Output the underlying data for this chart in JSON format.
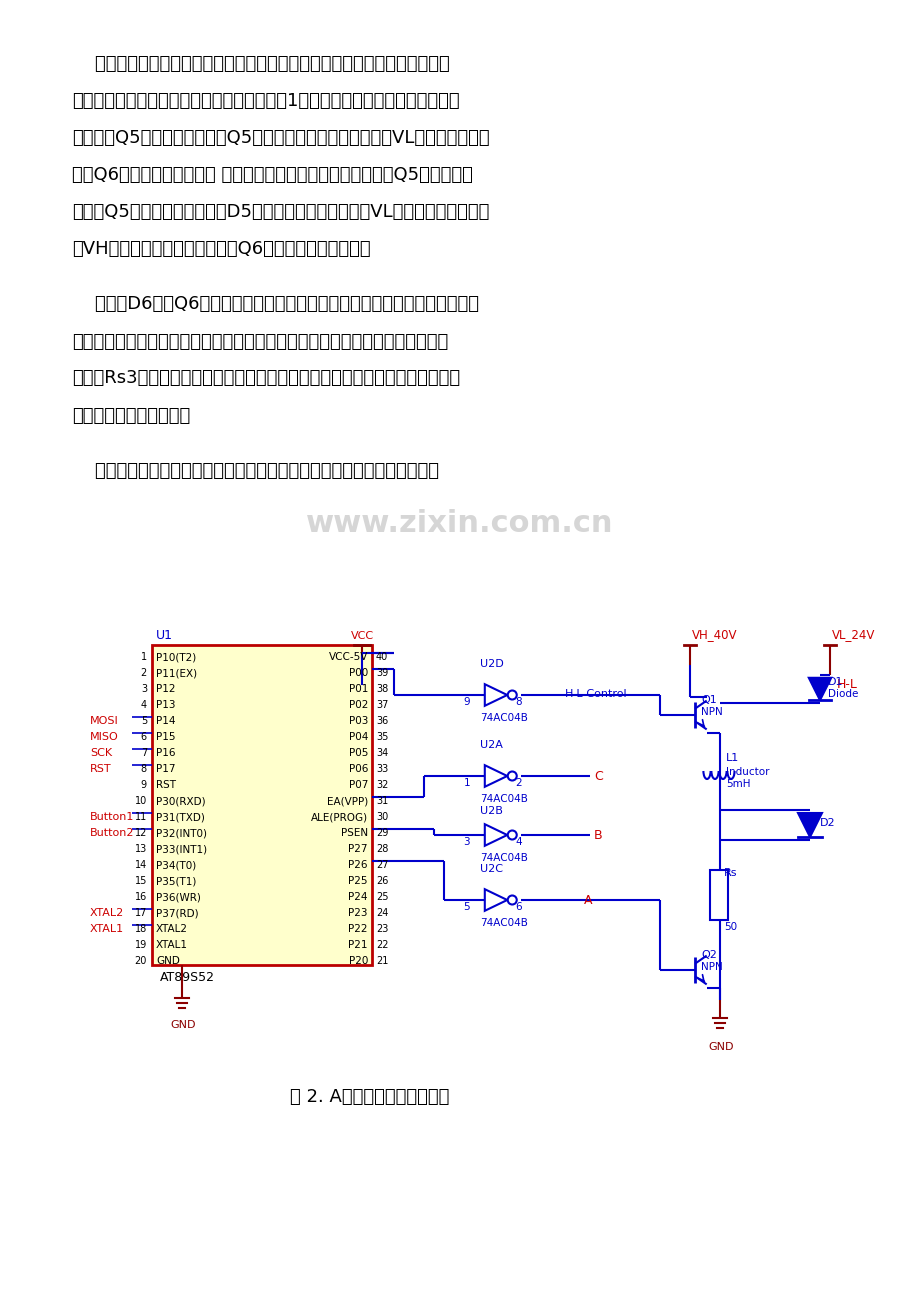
{
  "page_bg": "#ffffff",
  "text_color": "#000000",
  "blue": "#0000CC",
  "red": "#CC0000",
  "darkred": "#8B0000",
  "yellow_bg": "#FFFFCC",
  "watermark": "www.zixin.com.cn",
  "para1": [
    "双电压法。双电压法的基本思绪是在低频段使用较低的直流电压，而在高频",
    "段使用较高的直流电压，其驱动电路的原理图1所示。当电动机工作在低频段时，",
    "给开关管Q5基极加低电平，使Q5关断。这时相绕组由低压电源VL供电。控制脉冲",
    "通过Q6使绕组得到低压脉冲 当电动机工作在高频段时，给开关管Q5基极加高电",
    "平，使Q5导通。这时，二极管D5反向截止，切断低压电源VL，而相绕组由高压电",
    "源VH供电，控制脉冲通过开关管Q6使绕组得到高压脉冲。"
  ],
  "para2": [
    "二极管D6则在Q6关断期间起续流作用。这种驱动电路在低频段与单电压驱动",
    "相似。在高频段通过转换电源电压提高电流响应速度，但仍需要在绕组回路中串",
    "联电阵Rs3。并没有折脱单电压驱动的弱点。此外，将频率划分为高、低两段，",
    "使特性不持续，有突变。"
  ],
  "para3": "双电压驱动的三相双拍步进电机驱动控制系统设计的重要电路构造如下：",
  "caption": "图 2. A相与单片机的连接图。",
  "ic_left_pins": [
    "P10(T2)",
    "P11(EX)",
    "P12",
    "P13",
    "P14",
    "P15",
    "P16",
    "P17",
    "RST",
    "P30(RXD)",
    "P31(TXD)",
    "P32(INT0)",
    "P33(INT1)",
    "P34(T0)",
    "P35(T1)",
    "P36(WR)",
    "P37(RD)",
    "XTAL2",
    "XTAL1",
    "GND"
  ],
  "ic_right_pins": [
    "VCC-5V",
    "P00",
    "P01",
    "P02",
    "P03",
    "P04",
    "P05",
    "P06",
    "P07",
    "EA(VPP)",
    "ALE(PROG)",
    "PSEN",
    "P27",
    "P26",
    "P25",
    "P24",
    "P23",
    "P22",
    "P21",
    "P20"
  ],
  "pin_nums_left": [
    1,
    2,
    3,
    4,
    5,
    6,
    7,
    8,
    9,
    10,
    11,
    12,
    13,
    14,
    15,
    16,
    17,
    18,
    19,
    20
  ],
  "pin_nums_right": [
    40,
    39,
    38,
    37,
    36,
    35,
    34,
    33,
    32,
    31,
    30,
    29,
    28,
    27,
    26,
    25,
    24,
    23,
    22,
    21
  ],
  "left_labels": {
    "5": [
      "MOSI",
      "#CC0000"
    ],
    "6": [
      "MISO",
      "#CC0000"
    ],
    "7": [
      "SCK",
      "#CC0000"
    ],
    "8": [
      "RST",
      "#CC0000"
    ],
    "11": [
      "Button1",
      "#CC0000"
    ],
    "12": [
      "Button2",
      "#CC0000"
    ],
    "17": [
      "XTAL2",
      "#CC0000"
    ],
    "18": [
      "XTAL1",
      "#CC0000"
    ]
  }
}
